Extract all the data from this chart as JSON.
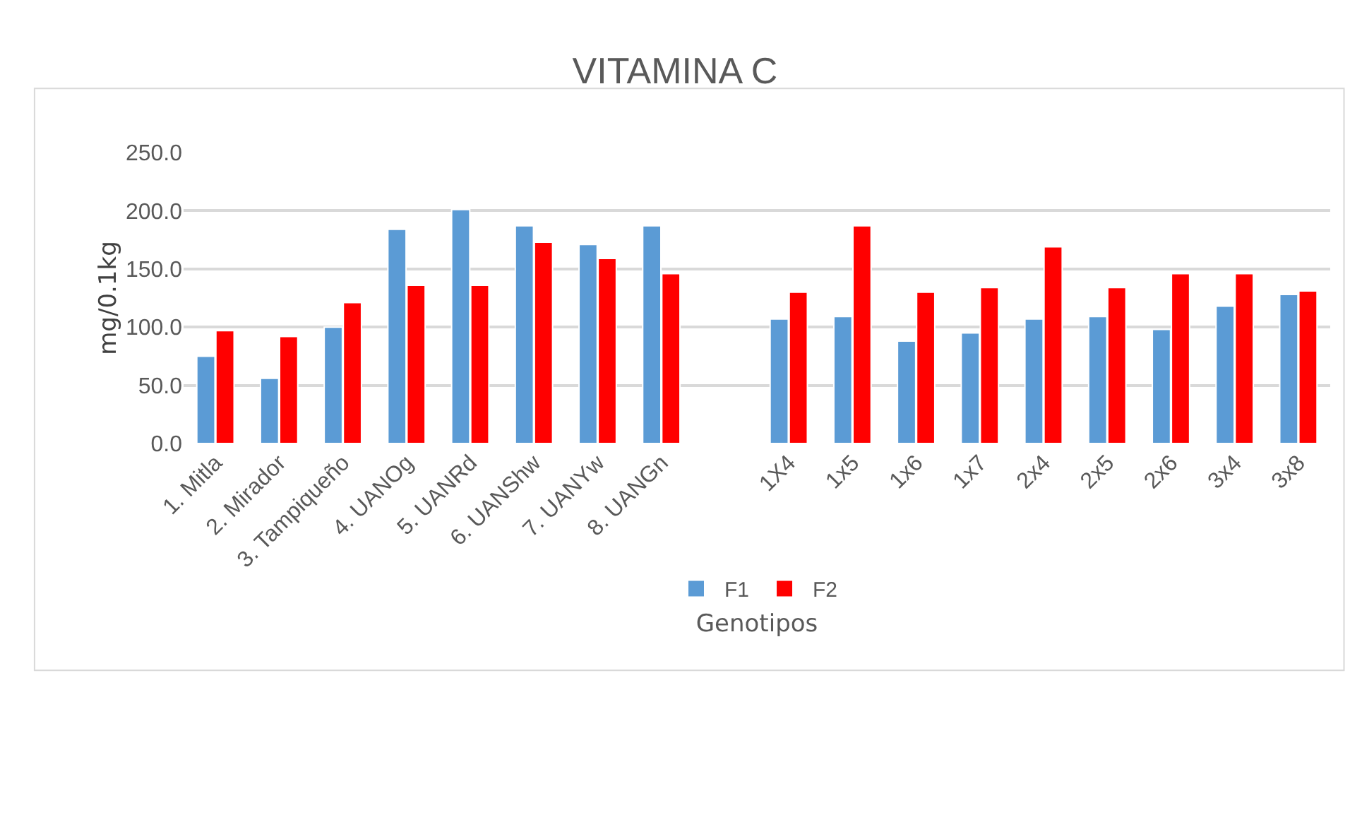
{
  "chart_data": {
    "type": "bar",
    "title": "VITAMINA C",
    "xlabel": "Genotipos",
    "ylabel": "mg/0.1kg",
    "categories": [
      "1. Mitla",
      "2. Mirador",
      "3. Tampiqueño",
      "4. UANOg",
      "5. UANRd",
      "6. UANShw",
      "7. UANYw",
      "8. UANGn",
      null,
      "1X4",
      "1x5",
      "1x6",
      "1x7",
      "2x4",
      "2x5",
      "2x6",
      "3x4",
      "3x8"
    ],
    "series": [
      {
        "name": "F1",
        "color": "#5b9bd5",
        "values": [
          75,
          56,
          100,
          184,
          201,
          187,
          171,
          187,
          null,
          107,
          109,
          88,
          95,
          107,
          109,
          98,
          118,
          128
        ]
      },
      {
        "name": "F2",
        "color": "#ff0000",
        "values": [
          97,
          92,
          121,
          136,
          136,
          173,
          159,
          146,
          null,
          130,
          187,
          130,
          134,
          169,
          134,
          146,
          146,
          131
        ]
      }
    ],
    "ylim": [
      0,
      250
    ],
    "yticks": [
      {
        "value": 0,
        "label": "0.0"
      },
      {
        "value": 50,
        "label": "50.0"
      },
      {
        "value": 100,
        "label": "100.0"
      },
      {
        "value": 150,
        "label": "150.0"
      },
      {
        "value": 200,
        "label": "200.0"
      },
      {
        "value": 250,
        "label": "250.0"
      }
    ],
    "grid": "y",
    "legend": "bottom"
  }
}
